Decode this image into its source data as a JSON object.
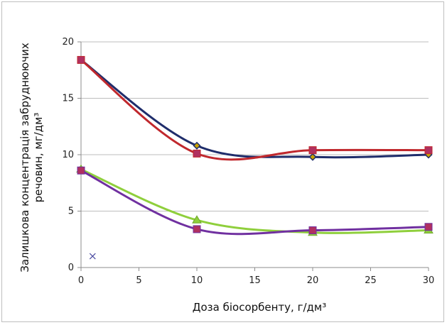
{
  "chart_data": {
    "type": "line",
    "title": "",
    "xlabel": "Доза біосорбенту, г/дм³",
    "ylabel_line1": "Залишкова концентрація  забруднюючих",
    "ylabel_line2": "речовин,  мг/дм³",
    "xlim": [
      0,
      30
    ],
    "ylim": [
      0,
      20
    ],
    "x_ticks": [
      0,
      5,
      10,
      15,
      20,
      25,
      30
    ],
    "y_ticks": [
      0,
      5,
      10,
      15,
      20
    ],
    "grid": "horizontal",
    "series": [
      {
        "marker": "diamond",
        "color": "#1f2d6b",
        "marker_color": "#c8a200",
        "x": [
          0,
          10,
          20,
          30
        ],
        "values": [
          18.4,
          10.8,
          9.8,
          10.0
        ]
      },
      {
        "marker": "square",
        "color": "#c0282d",
        "marker_color": "#b03060",
        "x": [
          0,
          10,
          20,
          30
        ],
        "values": [
          18.4,
          10.1,
          10.4,
          10.4
        ]
      },
      {
        "marker": "triangle",
        "color": "#8fcf3c",
        "marker_color": "#8fcf3c",
        "x": [
          0,
          10,
          20,
          30
        ],
        "values": [
          8.7,
          4.2,
          3.1,
          3.3
        ]
      },
      {
        "marker": "square",
        "color": "#7030a0",
        "marker_color": "#b03060",
        "x": [
          0,
          10,
          20,
          30
        ],
        "values": [
          8.6,
          3.4,
          3.3,
          3.6
        ]
      },
      {
        "marker": "x",
        "color": "#4a4aa0",
        "marker_color": "#4a4aa0",
        "x": [
          1
        ],
        "values": [
          1.0
        ],
        "no_line": true
      }
    ]
  }
}
